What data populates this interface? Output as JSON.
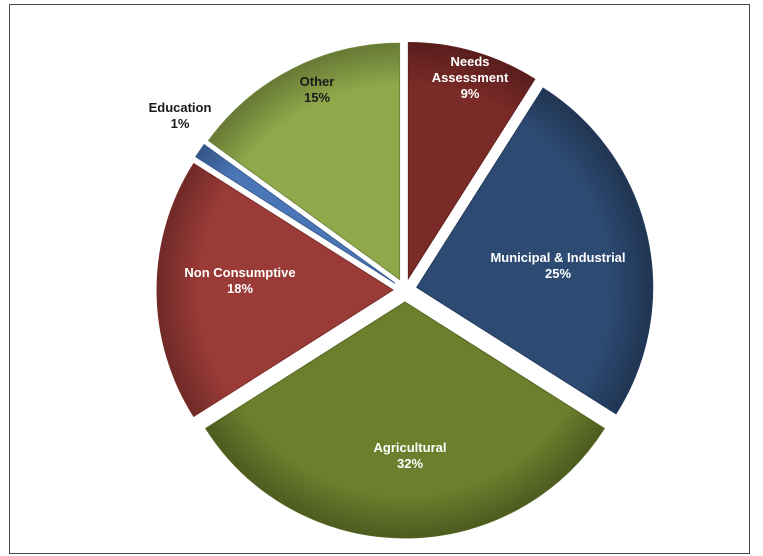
{
  "chart_data": {
    "type": "pie",
    "title": "",
    "exploded": true,
    "slices": [
      {
        "label": "Needs Assessment",
        "label_lines": [
          "Needs",
          "Assessment"
        ],
        "value": 9,
        "pct_text": "9%",
        "color": "#7a2a27",
        "text_color": "#ffffff"
      },
      {
        "label": "Municipal & Industrial",
        "label_lines": [
          "Municipal & Industrial"
        ],
        "value": 25,
        "pct_text": "25%",
        "color": "#2d4a72",
        "text_color": "#ffffff"
      },
      {
        "label": "Agricultural",
        "label_lines": [
          "Agricultural"
        ],
        "value": 32,
        "pct_text": "32%",
        "color": "#6b7f2d",
        "text_color": "#ffffff"
      },
      {
        "label": "Non Consumptive",
        "label_lines": [
          "Non Consumptive"
        ],
        "value": 18,
        "pct_text": "18%",
        "color": "#9a3b37",
        "text_color": "#ffffff"
      },
      {
        "label": "Education",
        "label_lines": [
          "Education"
        ],
        "value": 1,
        "pct_text": "1%",
        "color": "#4a76b8",
        "text_color": "#1a1a1a"
      },
      {
        "label": "Other",
        "label_lines": [
          "Other"
        ],
        "value": 15,
        "pct_text": "15%",
        "color": "#8fa84a",
        "text_color": "#1a1a1a"
      }
    ]
  }
}
